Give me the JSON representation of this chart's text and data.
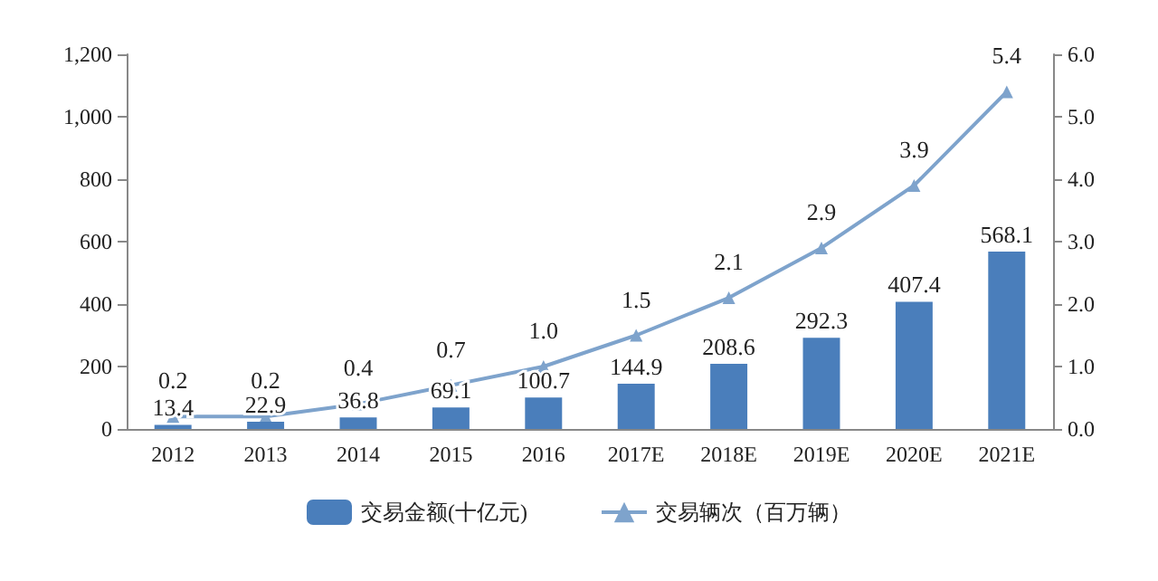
{
  "chart_data": {
    "type": "bar",
    "categories": [
      "2012",
      "2013",
      "2014",
      "2015",
      "2016",
      "2017E",
      "2018E",
      "2019E",
      "2020E",
      "2021E"
    ],
    "series": [
      {
        "name": "交易金额(十亿元)",
        "type": "bar",
        "color": "#4a7ebb",
        "values": [
          13.4,
          22.9,
          36.8,
          69.1,
          100.7,
          144.9,
          208.6,
          292.3,
          407.4,
          568.1
        ]
      },
      {
        "name": "交易辆次（百万辆）",
        "type": "line",
        "axis": "y2",
        "color": "#7ea3cc",
        "marker": "triangle",
        "values": [
          0.2,
          0.2,
          0.4,
          0.7,
          1.0,
          1.5,
          2.1,
          2.9,
          3.9,
          5.4
        ],
        "value_labels": [
          "0.2",
          "0.2",
          "0.4",
          "0.7",
          "1.0",
          "1.5",
          "2.1",
          "2.9",
          "3.9",
          "5.4"
        ]
      }
    ],
    "data_labels": true,
    "ylim": [
      0,
      1200
    ],
    "yticks": [
      0,
      200,
      400,
      600,
      800,
      {
        "value": 1000,
        "label": "1,000"
      },
      {
        "value": 1200,
        "label": "1,200"
      }
    ],
    "y2lim": [
      0,
      6
    ],
    "y2ticks": [
      {
        "value": 0,
        "label": "0.0"
      },
      {
        "value": 1,
        "label": "1.0"
      },
      {
        "value": 2,
        "label": "2.0"
      },
      {
        "value": 3,
        "label": "3.0"
      },
      {
        "value": 4,
        "label": "4.0"
      },
      {
        "value": 5,
        "label": "5.0"
      },
      {
        "value": 6,
        "label": "6.0"
      }
    ],
    "grid": false,
    "legend": "bottom"
  }
}
